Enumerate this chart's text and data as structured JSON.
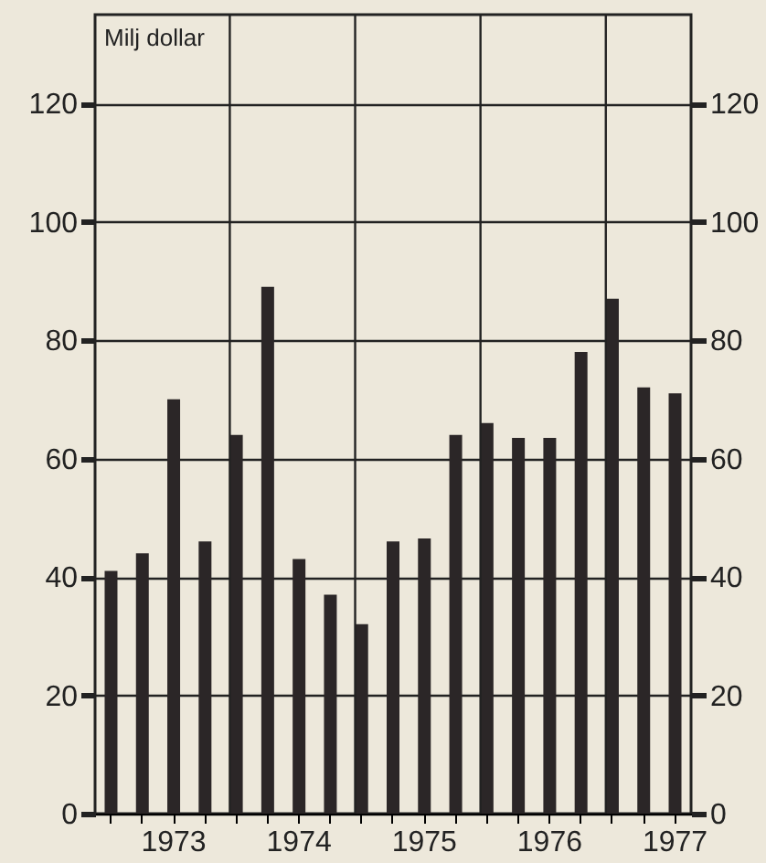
{
  "chart_data": {
    "type": "bar",
    "ylabel": "Milj dollar",
    "categories": [
      null,
      null,
      "1973",
      null,
      null,
      null,
      "1974",
      null,
      null,
      null,
      "1975",
      null,
      null,
      null,
      "1976",
      null,
      null,
      null,
      "1977"
    ],
    "values": [
      41,
      44,
      70,
      46,
      64,
      89,
      43,
      37,
      32,
      46,
      46.5,
      64,
      66,
      63.5,
      63.5,
      78,
      87,
      72,
      71
    ],
    "color": "#2b2627",
    "ylim": [
      0,
      135
    ],
    "yticks": [
      0,
      20,
      40,
      60,
      80,
      100,
      120
    ],
    "y2lim": [
      0,
      135
    ],
    "y2ticks": [
      0,
      20,
      40,
      60,
      80,
      100,
      120
    ],
    "grid": true
  }
}
